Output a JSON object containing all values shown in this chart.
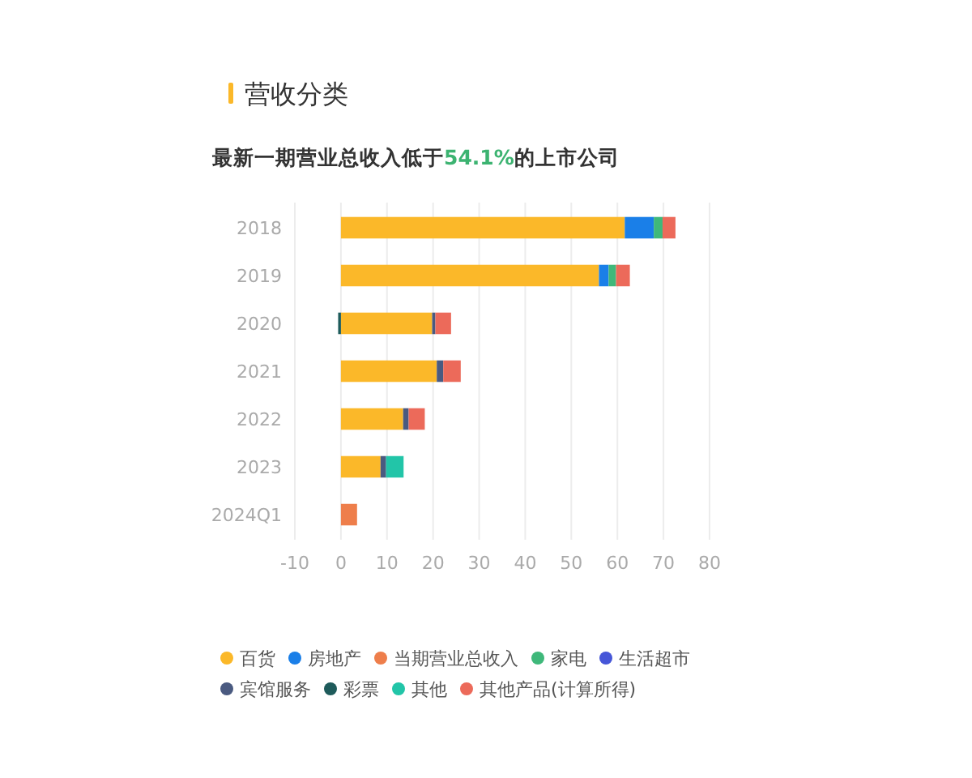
{
  "chart_data": {
    "type": "bar",
    "orientation": "horizontal",
    "stacked": true,
    "title": "营收分类",
    "subtitle": "最新一期营业总收入低于54.1%的上市公司",
    "categories": [
      "2018",
      "2019",
      "2020",
      "2021",
      "2022",
      "2023",
      "2024Q1"
    ],
    "series": [
      {
        "name": "百货",
        "color": "#fbb829",
        "values": [
          61.6,
          56.0,
          19.8,
          20.8,
          13.5,
          8.6,
          null
        ]
      },
      {
        "name": "房地产",
        "color": "#1a7fe8",
        "values": [
          6.3,
          2.1,
          null,
          null,
          null,
          null,
          null
        ]
      },
      {
        "name": "当期营业总收入",
        "color": "#ee7e4b",
        "values": [
          null,
          null,
          null,
          null,
          null,
          null,
          3.5
        ]
      },
      {
        "name": "家电",
        "color": "#3fb87a",
        "values": [
          1.9,
          1.6,
          null,
          null,
          null,
          null,
          null
        ]
      },
      {
        "name": "生活超市",
        "color": "#4656d8",
        "values": [
          null,
          null,
          null,
          null,
          null,
          null,
          null
        ]
      },
      {
        "name": "宾馆服务",
        "color": "#4a5a80",
        "values": [
          null,
          null,
          0.7,
          1.4,
          1.2,
          1.2,
          null
        ]
      },
      {
        "name": "彩票",
        "color": "#1e5b5b",
        "values": [
          null,
          null,
          -0.6,
          null,
          null,
          null,
          null
        ]
      },
      {
        "name": "其他",
        "color": "#22c5a8",
        "values": [
          null,
          null,
          null,
          null,
          null,
          3.8,
          null
        ]
      },
      {
        "name": "其他产品(计算所得)",
        "color": "#ec6a5a",
        "values": [
          2.8,
          3.0,
          3.4,
          3.8,
          3.5,
          null,
          null
        ]
      }
    ],
    "xlim": [
      -10,
      80
    ],
    "xticks": [
      -10,
      0,
      10,
      20,
      30,
      40,
      50,
      60,
      70,
      80
    ],
    "grid": "x",
    "legend": "bottom"
  }
}
